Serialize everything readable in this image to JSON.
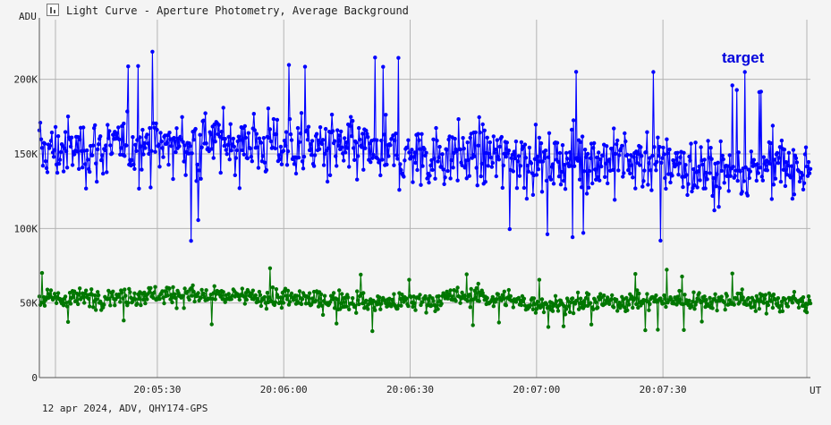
{
  "window": {
    "title": "Light Curve - Aperture Photometry, Average Background",
    "footer": "12 apr 2024, ADV, QHY174-GPS"
  },
  "chart_data": {
    "type": "scatter",
    "title": "Light Curve - Aperture Photometry, Average Background",
    "ylabel": "ADU",
    "xlabel": "UT",
    "x_range": [
      "20:05:02",
      "20:08:05"
    ],
    "ylim": [
      0,
      240000
    ],
    "y_ticks": [
      {
        "value": 0,
        "label": "0"
      },
      {
        "value": 50000,
        "label": "50K"
      },
      {
        "value": 100000,
        "label": "100K"
      },
      {
        "value": 150000,
        "label": "150K"
      },
      {
        "value": 200000,
        "label": "200K"
      }
    ],
    "x_ticks": [
      "20:05:30",
      "20:06:00",
      "20:06:30",
      "20:07:00",
      "20:07:30"
    ],
    "grid": true,
    "annotation": "target",
    "series": [
      {
        "name": "target",
        "color": "#0000ff",
        "mean": 150000,
        "spread": 22000,
        "min": 85000,
        "max": 235000,
        "profile": [
          {
            "t": "20:05:02",
            "y": 152000
          },
          {
            "t": "20:05:30",
            "y": 155000
          },
          {
            "t": "20:05:42",
            "y": 158000
          },
          {
            "t": "20:06:03",
            "y": 156000
          },
          {
            "t": "20:06:30",
            "y": 148000
          },
          {
            "t": "20:06:45",
            "y": 150000
          },
          {
            "t": "20:07:00",
            "y": 146000
          },
          {
            "t": "20:07:30",
            "y": 145000
          },
          {
            "t": "20:07:40",
            "y": 137000
          },
          {
            "t": "20:08:05",
            "y": 143000
          }
        ]
      },
      {
        "color": "#007700",
        "mean": 52000,
        "spread": 7000,
        "min": 25000,
        "max": 82000,
        "profile": [
          {
            "t": "20:05:02",
            "y": 52000
          },
          {
            "t": "20:05:30",
            "y": 56000
          },
          {
            "t": "20:06:00",
            "y": 53000
          },
          {
            "t": "20:06:30",
            "y": 50000
          },
          {
            "t": "20:06:45",
            "y": 55000
          },
          {
            "t": "20:07:00",
            "y": 49000
          },
          {
            "t": "20:07:30",
            "y": 52000
          },
          {
            "t": "20:08:05",
            "y": 51000
          }
        ]
      }
    ]
  }
}
